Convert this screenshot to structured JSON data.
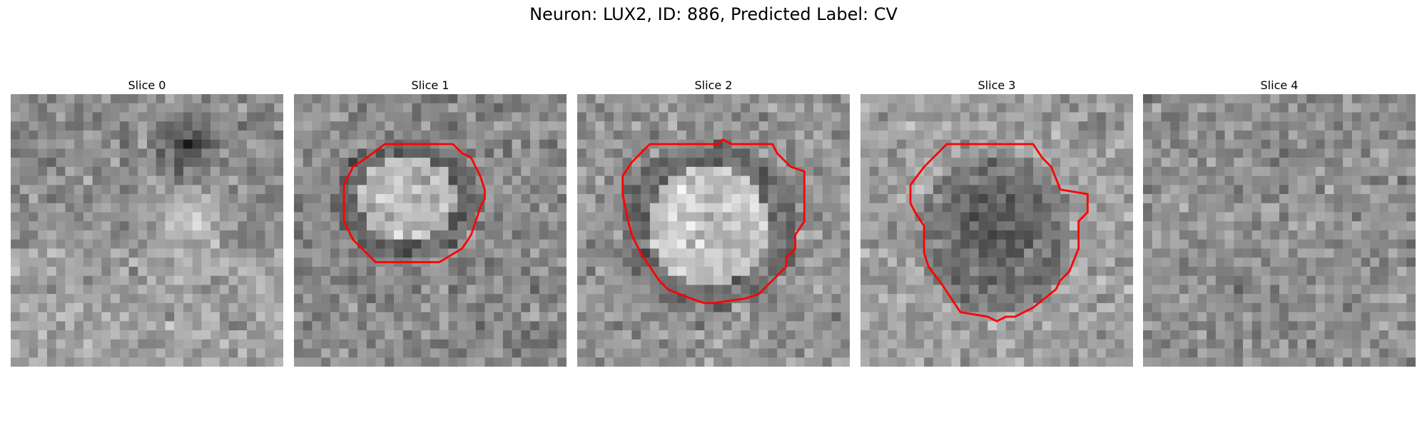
{
  "figure": {
    "title": "Neuron: LUX2, ID: 886, Predicted Label: CV"
  },
  "panels": [
    {
      "title": "Slice 0",
      "has_contour": false
    },
    {
      "title": "Slice 1",
      "has_contour": true
    },
    {
      "title": "Slice 2",
      "has_contour": true
    },
    {
      "title": "Slice 3",
      "has_contour": true
    },
    {
      "title": "Slice 4",
      "has_contour": false
    }
  ],
  "contour_color": "#ff0000",
  "colormap": "gray"
}
